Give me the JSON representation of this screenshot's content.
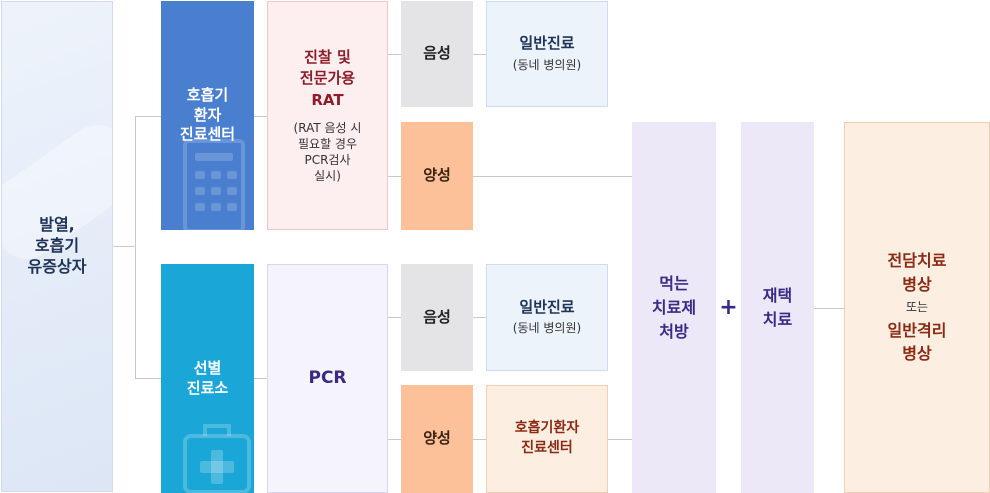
{
  "start": {
    "lines": [
      "발열,",
      "호흡기",
      "유증상자"
    ]
  },
  "respiratory_center": {
    "lines": [
      "호흡기",
      "환자",
      "진료센터"
    ]
  },
  "screening_clinic": {
    "lines": [
      "선별",
      "진료소"
    ]
  },
  "exam": {
    "title_lines": [
      "진찰 및",
      "전문가용",
      "RAT"
    ],
    "note_lines": [
      "(RAT 음성 시",
      "필요할 경우",
      "PCR검사",
      "실시)"
    ]
  },
  "pcr": {
    "label": "PCR"
  },
  "results": {
    "negative_1": "음성",
    "positive_1": "양성",
    "negative_2": "음성",
    "positive_2": "양성"
  },
  "general_care_1": {
    "main": "일반진료",
    "sub": "(동네 병의원)"
  },
  "general_care_2": {
    "main": "일반진료",
    "sub": "(동네 병의원)"
  },
  "respiratory_center_2": {
    "lines": [
      "호흡기환자",
      "진료센터"
    ]
  },
  "oral_treatment": {
    "lines": [
      "먹는",
      "치료제",
      "처방"
    ]
  },
  "plus": "+",
  "home_treatment": {
    "lines": [
      "재택",
      "치료"
    ]
  },
  "ward": {
    "line1": "전담치료",
    "line2": "병상",
    "or": "또는",
    "line3": "일반격리",
    "line4": "병상"
  },
  "colors": {
    "respiratory_blue": "#4a7fcf",
    "screening_cyan": "#1aa6d6",
    "positive_orange": "#fdc19a",
    "negative_gray": "#e4e4e6",
    "purple_text": "#3a2a86",
    "red_text": "#8e1c2a"
  }
}
